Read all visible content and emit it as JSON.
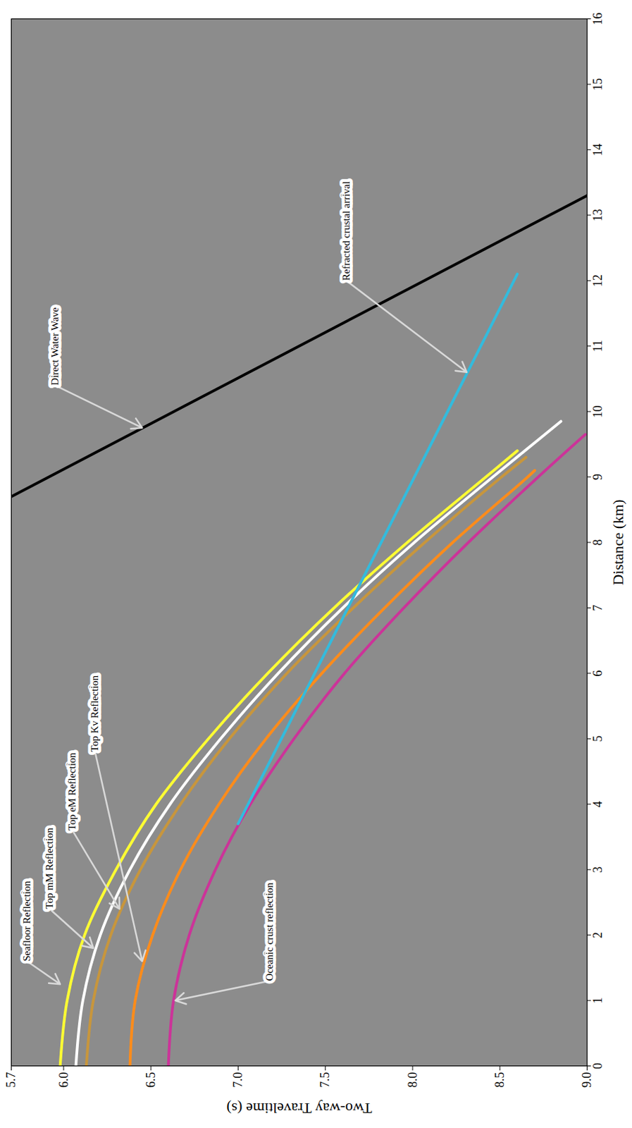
{
  "chart_data": {
    "type": "line",
    "x_label": "Distance (km)",
    "y_label": "Two-way Traveltime (s)",
    "xlim": [
      0,
      16
    ],
    "xticks": [
      0,
      1,
      2,
      3,
      4,
      5,
      6,
      7,
      8,
      9,
      10,
      11,
      12,
      13,
      14,
      15,
      16
    ],
    "ylim": [
      5.7,
      9.0
    ],
    "yticks": [
      5.7,
      {
        "value": 6,
        "label": "6.0"
      },
      6.5,
      {
        "value": 7,
        "label": "7.0"
      },
      7.5,
      {
        "value": 8,
        "label": "8.0"
      },
      8.5,
      {
        "value": 9,
        "label": "9.0"
      }
    ],
    "grid": false,
    "series": [
      {
        "name": "Seafloor Reflection",
        "color": "#ffff33",
        "x": [
          0,
          1,
          2,
          3,
          4,
          5,
          6,
          7,
          8,
          9,
          9.4
        ],
        "values": [
          5.98,
          6.02,
          6.12,
          6.3,
          6.53,
          6.83,
          7.17,
          7.55,
          7.97,
          8.42,
          8.6
        ],
        "label_x": 1.6,
        "label_y": 5.79,
        "arrow_x": 1.25,
        "arrow_y": 5.98
      },
      {
        "name": "Top mM Reflection",
        "color": "#ffffff",
        "x": [
          0,
          1,
          2,
          3,
          4,
          5,
          6,
          7,
          8,
          9,
          9.85
        ],
        "values": [
          6.07,
          6.11,
          6.21,
          6.38,
          6.61,
          6.9,
          7.23,
          7.6,
          8.01,
          8.46,
          8.85
        ],
        "label_x": 2.4,
        "label_y": 5.92,
        "arrow_x": 1.8,
        "arrow_y": 6.17
      },
      {
        "name": "Top eM Reflection",
        "color": "#c8963c",
        "x": [
          0,
          1,
          2,
          3,
          4,
          5,
          6,
          7,
          8,
          9,
          9.3
        ],
        "values": [
          6.13,
          6.17,
          6.27,
          6.44,
          6.67,
          6.95,
          7.28,
          7.66,
          8.07,
          8.51,
          8.65
        ],
        "label_x": 3.6,
        "label_y": 6.05,
        "arrow_x": 2.4,
        "arrow_y": 6.32
      },
      {
        "name": "Top Kv Reflection",
        "color": "#ff8c1a",
        "x": [
          0,
          1,
          2,
          3,
          4,
          5,
          6,
          7,
          8,
          9,
          9.1
        ],
        "values": [
          6.38,
          6.41,
          6.51,
          6.67,
          6.89,
          7.16,
          7.48,
          7.84,
          8.23,
          8.66,
          8.7
        ],
        "label_x": 4.8,
        "label_y": 6.18,
        "arrow_x": 1.6,
        "arrow_y": 6.45
      },
      {
        "name": "Oceanic crust reflection",
        "color": "#cc3399",
        "x": [
          0,
          1,
          2,
          3,
          4,
          5,
          6,
          7,
          8,
          9,
          9.65
        ],
        "values": [
          6.6,
          6.63,
          6.72,
          6.87,
          7.07,
          7.32,
          7.61,
          7.95,
          8.32,
          8.72,
          8.99
        ],
        "label_x": 1.3,
        "label_y": 7.18,
        "arrow_x": 1.0,
        "arrow_y": 6.64
      },
      {
        "name": "Refracted crustal arrival",
        "color": "#33bbdd",
        "x": [
          3.7,
          8,
          12.1
        ],
        "values": [
          7.0,
          7.82,
          8.6
        ],
        "label_x": 12.0,
        "label_y": 7.62,
        "arrow_x": 10.6,
        "arrow_y": 8.31
      },
      {
        "name": "Direct Water Wave",
        "color": "#000000",
        "x": [
          8.7,
          13.3
        ],
        "values": [
          5.7,
          9.0
        ],
        "label_x": 10.4,
        "label_y": 5.95,
        "arrow_x": 9.75,
        "arrow_y": 6.45
      }
    ]
  }
}
